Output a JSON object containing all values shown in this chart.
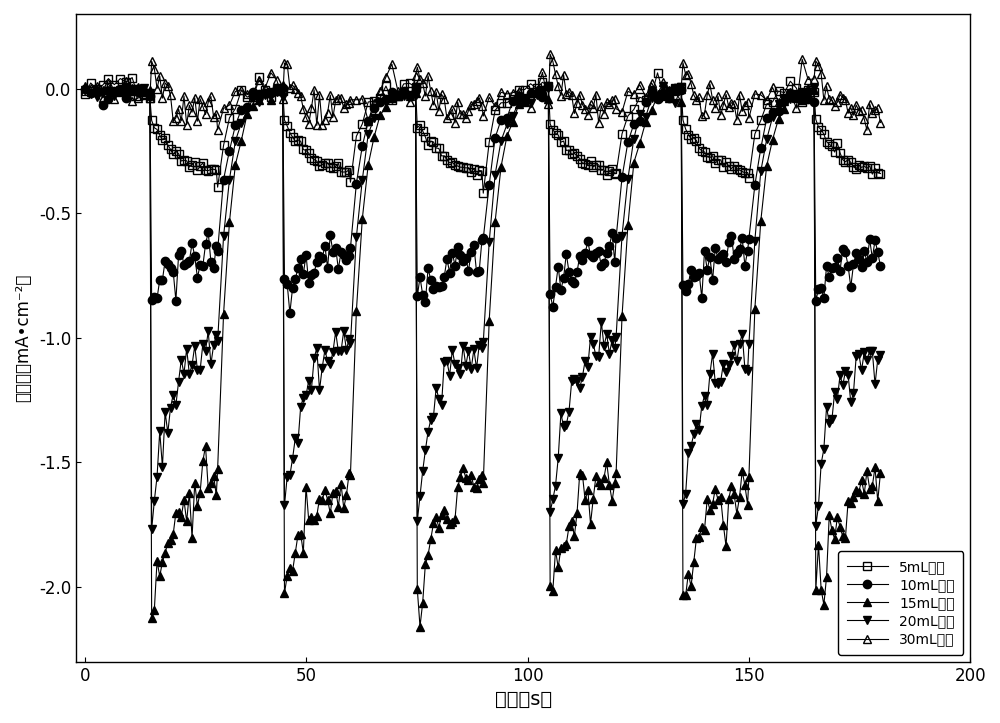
{
  "xlabel": "时间（s）",
  "ylabel": "光电流（mA•cm⁻²）",
  "xlim": [
    -2,
    200
  ],
  "ylim": [
    -2.3,
    0.3
  ],
  "xticks": [
    0,
    50,
    100,
    150,
    200
  ],
  "yticks": [
    0.0,
    -0.5,
    -1.0,
    -1.5,
    -2.0
  ],
  "labels": [
    "5mL乙醇",
    "10mL乙醇",
    "15mL乙醇",
    "20mL乙醇",
    "30mL乙醇"
  ],
  "markers": [
    "s",
    "o",
    "^",
    "v",
    "^"
  ],
  "fillstyles": [
    "none",
    "full",
    "full",
    "full",
    "none"
  ],
  "period": 30,
  "num_cycles": 6,
  "series_params": [
    {
      "peak": -0.13,
      "steady": -0.35,
      "decay_tau": 6,
      "noise": 0.08,
      "dark_level": 0.0,
      "dark_noise": 0.03
    },
    {
      "peak": -0.82,
      "steady": -0.62,
      "decay_tau": 8,
      "noise": 0.05,
      "dark_level": -0.02,
      "dark_noise": 0.02
    },
    {
      "peak": -2.1,
      "steady": -1.55,
      "decay_tau": 5,
      "noise": 0.03,
      "dark_level": -0.01,
      "dark_noise": 0.015
    },
    {
      "peak": -1.75,
      "steady": -1.02,
      "decay_tau": 4,
      "noise": 0.03,
      "dark_level": -0.01,
      "dark_noise": 0.015
    },
    {
      "peak": 0.15,
      "steady": -0.08,
      "decay_tau": 2,
      "noise": 0.25,
      "dark_level": 0.0,
      "dark_noise": 0.04
    }
  ],
  "bg_color": "#ffffff",
  "xlabel_fontsize": 14,
  "ylabel_fontsize": 12,
  "tick_fontsize": 12,
  "legend_fontsize": 11,
  "marker_size": 6,
  "linewidth": 0.8
}
